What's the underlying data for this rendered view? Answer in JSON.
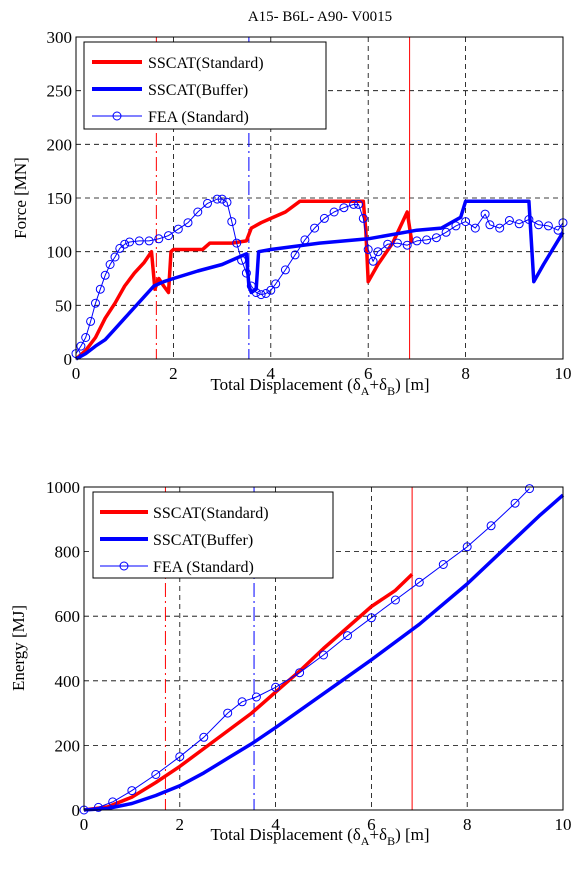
{
  "chart_data": [
    {
      "type": "line",
      "title": "A15- B6L- A90- V0015",
      "xlabel": {
        "main": "Total Displacement (",
        "d1": "δ",
        "s1": "A",
        "plus": "+",
        "d2": "δ",
        "s2": "B",
        "tail": ") [m]"
      },
      "ylabel": "Force [MN]",
      "xlim": [
        0,
        10
      ],
      "ylim": [
        0,
        300
      ],
      "xticks": [
        "0",
        "2",
        "4",
        "6",
        "8",
        "10"
      ],
      "yticks": [
        "0",
        "50",
        "100",
        "150",
        "200",
        "250",
        "300"
      ],
      "xtick_values": [
        0,
        2,
        4,
        6,
        8,
        10
      ],
      "ytick_values": [
        0,
        50,
        100,
        150,
        200,
        250,
        300
      ],
      "grid": true,
      "legend_position": "top-left",
      "vlines": [
        {
          "x": 1.65,
          "color": "#ff0000",
          "style": "dashdot"
        },
        {
          "x": 3.55,
          "color": "#0000ff",
          "style": "dashdot"
        },
        {
          "x": 6.85,
          "color": "#ff0000",
          "style": "solid"
        }
      ],
      "series": [
        {
          "name": "SSCAT(Standard)",
          "color": "#ff0000",
          "marker": "none",
          "points": [
            [
              0,
              0
            ],
            [
              0.2,
              8
            ],
            [
              0.4,
              20
            ],
            [
              0.6,
              38
            ],
            [
              0.8,
              52
            ],
            [
              1.0,
              68
            ],
            [
              1.2,
              80
            ],
            [
              1.4,
              90
            ],
            [
              1.55,
              100
            ],
            [
              1.62,
              65
            ],
            [
              1.7,
              75
            ],
            [
              1.8,
              68
            ],
            [
              1.9,
              62
            ],
            [
              1.95,
              100
            ],
            [
              2.0,
              102
            ],
            [
              2.6,
              102
            ],
            [
              2.75,
              108
            ],
            [
              3.2,
              108
            ],
            [
              3.5,
              110
            ],
            [
              3.6,
              122
            ],
            [
              3.8,
              127
            ],
            [
              4.0,
              131
            ],
            [
              4.3,
              137
            ],
            [
              4.6,
              147
            ],
            [
              5.0,
              147
            ],
            [
              5.9,
              147
            ],
            [
              5.95,
              120
            ],
            [
              6.0,
              72
            ],
            [
              6.2,
              88
            ],
            [
              6.5,
              108
            ],
            [
              6.8,
              137
            ],
            [
              6.9,
              108
            ]
          ]
        },
        {
          "name": "SSCAT(Buffer)",
          "color": "#0000ff",
          "marker": "none",
          "points": [
            [
              0,
              0
            ],
            [
              0.2,
              5
            ],
            [
              0.4,
              12
            ],
            [
              0.6,
              18
            ],
            [
              0.8,
              28
            ],
            [
              1.0,
              38
            ],
            [
              1.2,
              48
            ],
            [
              1.4,
              58
            ],
            [
              1.6,
              68
            ],
            [
              1.8,
              72
            ],
            [
              2.0,
              75
            ],
            [
              2.5,
              82
            ],
            [
              3.0,
              88
            ],
            [
              3.5,
              98
            ],
            [
              3.55,
              68
            ],
            [
              3.6,
              62
            ],
            [
              3.7,
              65
            ],
            [
              3.75,
              100
            ],
            [
              4.0,
              102
            ],
            [
              5.0,
              108
            ],
            [
              6.0,
              112
            ],
            [
              7.0,
              120
            ],
            [
              7.5,
              122
            ],
            [
              7.9,
              132
            ],
            [
              8.0,
              147
            ],
            [
              9.3,
              147
            ],
            [
              9.4,
              72
            ],
            [
              9.6,
              88
            ],
            [
              10,
              118
            ]
          ]
        },
        {
          "name": "FEA  (Standard)",
          "color": "#0000ff",
          "marker": "circle",
          "points": [
            [
              0,
              5
            ],
            [
              0.1,
              12
            ],
            [
              0.2,
              20
            ],
            [
              0.3,
              35
            ],
            [
              0.4,
              52
            ],
            [
              0.5,
              65
            ],
            [
              0.6,
              78
            ],
            [
              0.7,
              88
            ],
            [
              0.8,
              95
            ],
            [
              0.9,
              103
            ],
            [
              1.0,
              107
            ],
            [
              1.1,
              109
            ],
            [
              1.3,
              110
            ],
            [
              1.5,
              110
            ],
            [
              1.7,
              112
            ],
            [
              1.9,
              115
            ],
            [
              2.1,
              121
            ],
            [
              2.3,
              127
            ],
            [
              2.5,
              137
            ],
            [
              2.7,
              145
            ],
            [
              2.9,
              149
            ],
            [
              3.0,
              149
            ],
            [
              3.1,
              146
            ],
            [
              3.2,
              128
            ],
            [
              3.3,
              108
            ],
            [
              3.4,
              92
            ],
            [
              3.5,
              80
            ],
            [
              3.6,
              68
            ],
            [
              3.7,
              62
            ],
            [
              3.8,
              60
            ],
            [
              3.9,
              61
            ],
            [
              4.0,
              64
            ],
            [
              4.1,
              70
            ],
            [
              4.3,
              83
            ],
            [
              4.5,
              97
            ],
            [
              4.7,
              111
            ],
            [
              4.9,
              122
            ],
            [
              5.1,
              131
            ],
            [
              5.3,
              137
            ],
            [
              5.5,
              141
            ],
            [
              5.7,
              144
            ],
            [
              5.8,
              144
            ],
            [
              5.9,
              131
            ],
            [
              6.0,
              102
            ],
            [
              6.1,
              91
            ],
            [
              6.2,
              100
            ],
            [
              6.4,
              107
            ],
            [
              6.6,
              108
            ],
            [
              6.8,
              106
            ],
            [
              7.0,
              110
            ],
            [
              7.2,
              111
            ],
            [
              7.4,
              113
            ],
            [
              7.6,
              118
            ],
            [
              7.8,
              124
            ],
            [
              8.0,
              128
            ],
            [
              8.2,
              122
            ],
            [
              8.4,
              135
            ],
            [
              8.5,
              125
            ],
            [
              8.7,
              122
            ],
            [
              8.9,
              129
            ],
            [
              9.1,
              126
            ],
            [
              9.3,
              130
            ],
            [
              9.5,
              125
            ],
            [
              9.7,
              124
            ],
            [
              9.9,
              120
            ],
            [
              10,
              127
            ]
          ]
        }
      ]
    },
    {
      "type": "line",
      "title": "",
      "xlabel": {
        "main": "Total Displacement (",
        "d1": "δ",
        "s1": "A",
        "plus": "+",
        "d2": "δ",
        "s2": "B",
        "tail": ") [m]"
      },
      "ylabel": "Energy [MJ]",
      "xlim": [
        0,
        10
      ],
      "ylim": [
        0,
        1000
      ],
      "xticks": [
        "0",
        "2",
        "4",
        "6",
        "8",
        "10"
      ],
      "yticks": [
        "0",
        "200",
        "400",
        "600",
        "800",
        "1000"
      ],
      "xtick_values": [
        0,
        2,
        4,
        6,
        8,
        10
      ],
      "ytick_values": [
        0,
        200,
        400,
        600,
        800,
        1000
      ],
      "grid": true,
      "legend_position": "top-left",
      "vlines": [
        {
          "x": 1.7,
          "color": "#ff0000",
          "style": "dashdot"
        },
        {
          "x": 3.55,
          "color": "#0000ff",
          "style": "dashdot"
        },
        {
          "x": 6.85,
          "color": "#ff0000",
          "style": "solid"
        }
      ],
      "series": [
        {
          "name": "SSCAT(Standard)",
          "color": "#ff0000",
          "marker": "none",
          "points": [
            [
              0,
              0
            ],
            [
              0.5,
              10
            ],
            [
              1.0,
              40
            ],
            [
              1.5,
              85
            ],
            [
              2.0,
              135
            ],
            [
              2.5,
              190
            ],
            [
              3.0,
              245
            ],
            [
              3.5,
              300
            ],
            [
              4.0,
              365
            ],
            [
              4.5,
              430
            ],
            [
              5.0,
              500
            ],
            [
              5.5,
              565
            ],
            [
              6.0,
              630
            ],
            [
              6.5,
              680
            ],
            [
              6.85,
              730
            ]
          ]
        },
        {
          "name": "SSCAT(Buffer)",
          "color": "#0000ff",
          "marker": "none",
          "points": [
            [
              0,
              0
            ],
            [
              0.5,
              5
            ],
            [
              1.0,
              20
            ],
            [
              1.5,
              45
            ],
            [
              2.0,
              75
            ],
            [
              2.5,
              115
            ],
            [
              3.0,
              160
            ],
            [
              3.5,
              205
            ],
            [
              4.0,
              255
            ],
            [
              5.0,
              360
            ],
            [
              6.0,
              465
            ],
            [
              7.0,
              575
            ],
            [
              8.0,
              700
            ],
            [
              9.0,
              840
            ],
            [
              9.5,
              910
            ],
            [
              10,
              975
            ]
          ]
        },
        {
          "name": "FEA  (Standard)",
          "color": "#0000ff",
          "marker": "circle",
          "points": [
            [
              0,
              0
            ],
            [
              0.3,
              8
            ],
            [
              0.6,
              25
            ],
            [
              1.0,
              60
            ],
            [
              1.5,
              110
            ],
            [
              2.0,
              165
            ],
            [
              2.5,
              225
            ],
            [
              3.0,
              300
            ],
            [
              3.3,
              335
            ],
            [
              3.6,
              350
            ],
            [
              4.0,
              380
            ],
            [
              4.5,
              425
            ],
            [
              5.0,
              480
            ],
            [
              5.5,
              540
            ],
            [
              6.0,
              595
            ],
            [
              6.5,
              650
            ],
            [
              7.0,
              705
            ],
            [
              7.5,
              760
            ],
            [
              8.0,
              815
            ],
            [
              8.5,
              880
            ],
            [
              9.0,
              950
            ],
            [
              9.3,
              995
            ]
          ]
        }
      ]
    }
  ]
}
